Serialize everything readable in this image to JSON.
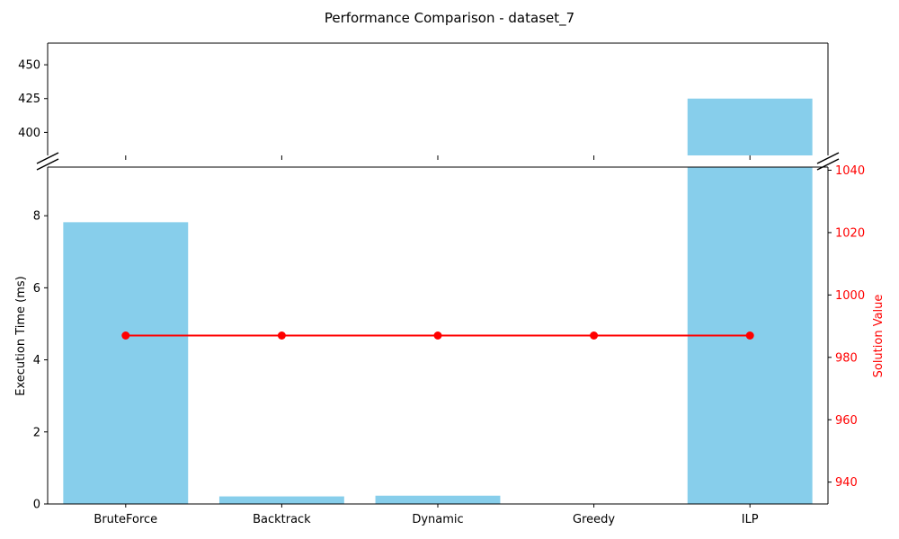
{
  "chart_data": {
    "type": "bar",
    "title": "Performance Comparison - dataset_7",
    "categories": [
      "BruteForce",
      "Backtrack",
      "Dynamic",
      "Greedy",
      "ILP"
    ],
    "xlabel": "",
    "ylabel": "Execution Time (ms)",
    "y2label": "Solution Value",
    "broken_axis": true,
    "grid": false,
    "series": [
      {
        "kind": "bar",
        "axis": "left",
        "color": "#87ceeb",
        "values": [
          7.82,
          0.21,
          0.23,
          0.0,
          425
        ]
      },
      {
        "kind": "line",
        "axis": "right",
        "color": "#ff0000",
        "marker": "circle",
        "values": [
          987,
          987,
          987,
          987,
          987
        ]
      }
    ],
    "upper_panel": {
      "ylim": [
        383,
        466
      ],
      "yticks": [
        400,
        425,
        450
      ]
    },
    "lower_panel": {
      "ylim": [
        0,
        9.35
      ],
      "yticks": [
        0,
        2,
        4,
        6,
        8
      ]
    },
    "right_axis": {
      "ylim": [
        933,
        1041
      ],
      "yticks": [
        940,
        960,
        980,
        1000,
        1020,
        1040
      ],
      "color": "#ff0000"
    }
  }
}
